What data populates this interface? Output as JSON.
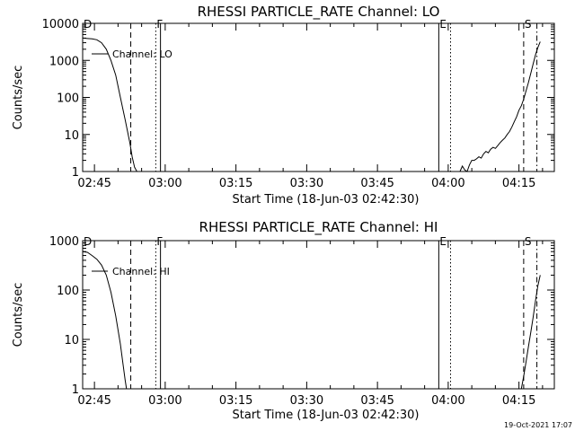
{
  "footer": {
    "timestamp": "19-Oct-2021 17:07"
  },
  "chart_data": [
    {
      "type": "line",
      "title": "RHESSI PARTICLE_RATE Channel: LO",
      "xlabel": "Start Time (18-Jun-03 02:42:30)",
      "ylabel": "Counts/sec",
      "yscale": "log",
      "ylim": [
        1,
        10000
      ],
      "xlim_minutes": [
        0,
        100
      ],
      "x_ticks": [
        "02:45",
        "03:00",
        "03:15",
        "03:30",
        "03:45",
        "04:00",
        "04:15"
      ],
      "y_ticks": [
        "1",
        "10",
        "100",
        "1000",
        "10000"
      ],
      "legend": {
        "label": "Channel: LO",
        "placement": "top-left"
      },
      "markers": [
        {
          "label": "D",
          "x_minutes": 0,
          "style": "solid"
        },
        {
          "label": "",
          "x_minutes": 10.2,
          "style": "dashed"
        },
        {
          "label": "F",
          "x_minutes": 15.5,
          "style": "dotted"
        },
        {
          "label": "",
          "x_minutes": 16.5,
          "style": "solid"
        },
        {
          "label": "E",
          "x_minutes": 75.5,
          "style": "solid"
        },
        {
          "label": "",
          "x_minutes": 78.0,
          "style": "dotted"
        },
        {
          "label": "S",
          "x_minutes": 93.5,
          "style": "dashed"
        },
        {
          "label": "",
          "x_minutes": 96.3,
          "style": "dashdot"
        }
      ],
      "series": [
        {
          "segments": [
            [
              [
                0,
                4000
              ],
              [
                1,
                3900
              ],
              [
                2,
                3800
              ],
              [
                3,
                3600
              ],
              [
                4,
                3000
              ],
              [
                5,
                2000
              ],
              [
                6,
                1000
              ],
              [
                7,
                400
              ],
              [
                8,
                100
              ],
              [
                9,
                25
              ],
              [
                10,
                6
              ],
              [
                10.5,
                2.5
              ],
              [
                11,
                1.3
              ],
              [
                11.5,
                1
              ],
              [
                12,
                1
              ]
            ],
            [
              [
                80,
                1
              ],
              [
                80.5,
                1.4
              ],
              [
                81,
                1.1
              ],
              [
                81.5,
                1
              ],
              [
                82,
                1.5
              ],
              [
                82.5,
                2
              ],
              [
                83,
                2
              ],
              [
                83.5,
                2.2
              ],
              [
                84,
                2.5
              ],
              [
                84.5,
                2.3
              ],
              [
                85,
                3
              ],
              [
                85.5,
                3.5
              ],
              [
                86,
                3.2
              ],
              [
                86.5,
                4
              ],
              [
                87,
                4.5
              ],
              [
                87.5,
                4.2
              ],
              [
                88,
                5
              ],
              [
                88.5,
                6
              ],
              [
                89,
                7
              ],
              [
                89.5,
                8
              ],
              [
                90,
                10
              ],
              [
                90.5,
                12
              ],
              [
                91,
                16
              ],
              [
                91.5,
                22
              ],
              [
                92,
                30
              ],
              [
                92.5,
                45
              ],
              [
                93,
                60
              ],
              [
                93.5,
                90
              ],
              [
                94,
                150
              ],
              [
                94.5,
                250
              ],
              [
                95,
                450
              ],
              [
                95.5,
                800
              ],
              [
                96,
                1400
              ],
              [
                96.5,
                2200
              ],
              [
                97,
                3200
              ]
            ]
          ]
        }
      ]
    },
    {
      "type": "line",
      "title": "RHESSI PARTICLE_RATE Channel: HI",
      "xlabel": "Start Time (18-Jun-03 02:42:30)",
      "ylabel": "Counts/sec",
      "yscale": "log",
      "ylim": [
        1,
        1000
      ],
      "xlim_minutes": [
        0,
        100
      ],
      "x_ticks": [
        "02:45",
        "03:00",
        "03:15",
        "03:30",
        "03:45",
        "04:00",
        "04:15"
      ],
      "y_ticks": [
        "1",
        "10",
        "100",
        "1000"
      ],
      "legend": {
        "label": "Channel: HI",
        "placement": "top-left"
      },
      "markers": [
        {
          "label": "D",
          "x_minutes": 0,
          "style": "solid"
        },
        {
          "label": "",
          "x_minutes": 10.2,
          "style": "dashed"
        },
        {
          "label": "F",
          "x_minutes": 15.5,
          "style": "dotted"
        },
        {
          "label": "",
          "x_minutes": 16.5,
          "style": "solid"
        },
        {
          "label": "E",
          "x_minutes": 75.5,
          "style": "solid"
        },
        {
          "label": "",
          "x_minutes": 78.0,
          "style": "dotted"
        },
        {
          "label": "S",
          "x_minutes": 93.5,
          "style": "dashed"
        },
        {
          "label": "",
          "x_minutes": 96.3,
          "style": "dashdot"
        }
      ],
      "series": [
        {
          "segments": [
            [
              [
                0,
                600
              ],
              [
                1,
                580
              ],
              [
                2,
                500
              ],
              [
                3,
                420
              ],
              [
                4,
                320
              ],
              [
                5,
                200
              ],
              [
                6,
                90
              ],
              [
                7,
                30
              ],
              [
                8,
                8
              ],
              [
                8.5,
                3.5
              ],
              [
                9,
                1.5
              ],
              [
                9.3,
                1
              ]
            ],
            [
              [
                93,
                1
              ],
              [
                93.5,
                1.8
              ],
              [
                94,
                3.5
              ],
              [
                94.5,
                7
              ],
              [
                95,
                14
              ],
              [
                95.5,
                28
              ],
              [
                96,
                60
              ],
              [
                96.5,
                120
              ],
              [
                97,
                200
              ]
            ]
          ]
        }
      ]
    }
  ]
}
